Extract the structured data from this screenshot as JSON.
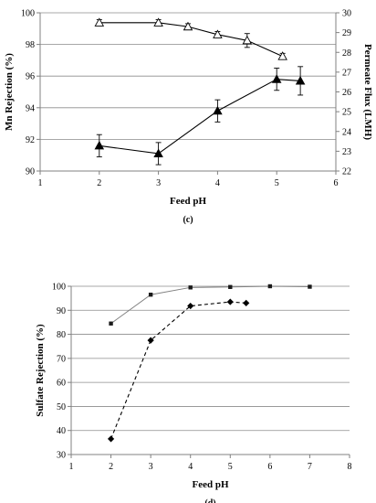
{
  "chart_data": [
    {
      "panel": "(c)",
      "type": "line",
      "xlabel": "Feed pH",
      "ylabel": "Mn Rejection (%)",
      "y2label": "Permeate Flux (LMH)",
      "xlim": [
        1,
        6
      ],
      "ylim": [
        90,
        100
      ],
      "y2lim": [
        22,
        30
      ],
      "xticks": [
        "1",
        "2",
        "3",
        "4",
        "5",
        "6"
      ],
      "yticks": [
        "90",
        "92",
        "94",
        "96",
        "98",
        "100"
      ],
      "y2ticks": [
        "22",
        "23",
        "24",
        "25",
        "26",
        "27",
        "28",
        "29",
        "30"
      ],
      "grid": "horizontal",
      "series": [
        {
          "marker": "open-triangle",
          "axis": "right",
          "x": [
            2,
            3,
            3.5,
            4,
            4.5,
            5.1
          ],
          "y": [
            29.5,
            29.5,
            29.3,
            28.9,
            28.6,
            27.8
          ],
          "err": [
            0.15,
            0.15,
            0.15,
            0.15,
            0.35,
            0.15
          ]
        },
        {
          "marker": "filled-triangle",
          "axis": "left",
          "x": [
            2,
            3,
            4,
            5,
            5.4
          ],
          "y": [
            91.6,
            91.1,
            93.8,
            95.8,
            95.7
          ],
          "err": [
            0.7,
            0.7,
            0.7,
            0.7,
            0.9
          ]
        }
      ]
    },
    {
      "panel": "(d)",
      "type": "line",
      "xlabel": "Feed pH",
      "ylabel": "Sulfate Rejection (%)",
      "xlim": [
        1,
        8
      ],
      "ylim": [
        30,
        100
      ],
      "xticks": [
        "1",
        "2",
        "3",
        "4",
        "5",
        "6",
        "7",
        "8"
      ],
      "yticks": [
        "30",
        "40",
        "50",
        "60",
        "70",
        "80",
        "90",
        "100"
      ],
      "grid": "horizontal",
      "series": [
        {
          "marker": "small-square",
          "line": "solid",
          "x": [
            2,
            3,
            4,
            5,
            6,
            7
          ],
          "y": [
            84.5,
            96.5,
            99.5,
            99.7,
            100,
            99.8
          ]
        },
        {
          "marker": "diamond",
          "line": "dashed",
          "x": [
            2,
            3,
            4,
            5,
            5.4
          ],
          "y": [
            36.5,
            77.5,
            91.8,
            93.5,
            93
          ]
        }
      ]
    }
  ]
}
